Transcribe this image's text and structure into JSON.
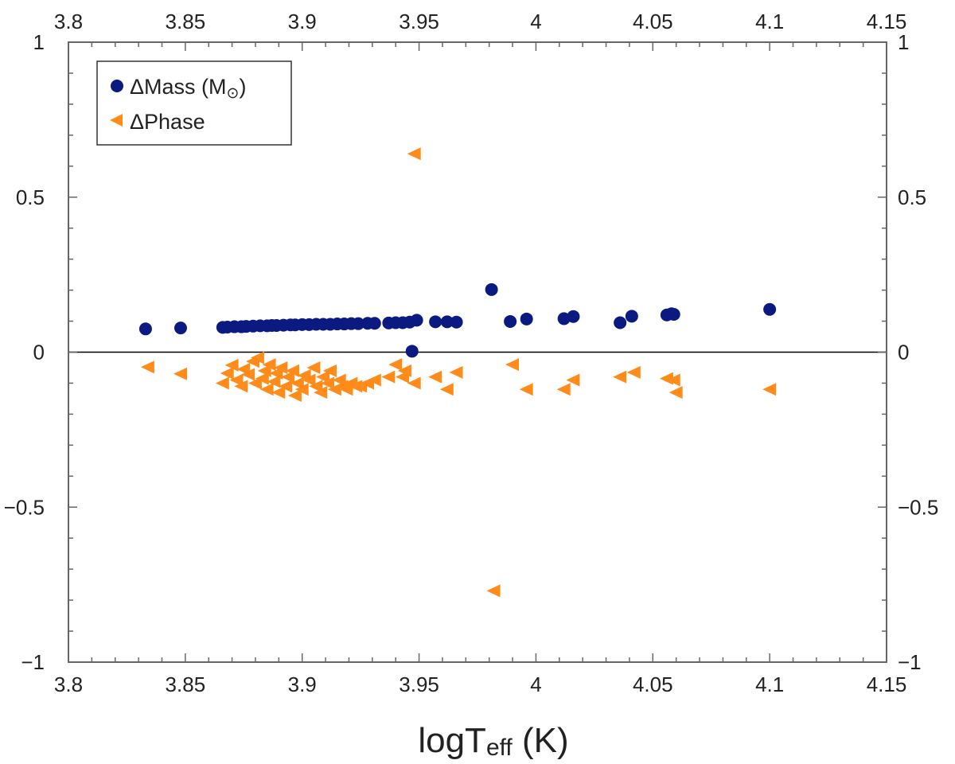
{
  "chart_data": {
    "type": "scatter",
    "title": "",
    "xlabel": {
      "main": "logT",
      "sub": "eff",
      "unit": " (K)"
    },
    "ylabel": "",
    "xlim": [
      3.8,
      4.15
    ],
    "ylim": [
      -1,
      1
    ],
    "x_ticks": [
      3.8,
      3.85,
      3.9,
      3.95,
      4,
      4.05,
      4.1,
      4.15
    ],
    "x_tick_labels": [
      "3.8",
      "3.85",
      "3.9",
      "3.95",
      "4",
      "4.05",
      "4.1",
      "4.15"
    ],
    "y_ticks": [
      -1,
      -0.5,
      0,
      0.5,
      1
    ],
    "y_tick_labels": [
      "−1",
      "−0.5",
      "0",
      "0.5",
      "1"
    ],
    "zero_line": true,
    "grid": false,
    "legend": {
      "position": "top-left",
      "entries": [
        {
          "main": "ΔMass (M",
          "sub": "⊙",
          "tail": ")"
        },
        {
          "main": "ΔPhase"
        }
      ]
    },
    "series": [
      {
        "name": "ΔMass (M⊙)",
        "marker": "circle",
        "color": "#0a1a80",
        "points": [
          [
            3.833,
            0.075
          ],
          [
            3.848,
            0.078
          ],
          [
            3.866,
            0.08
          ],
          [
            3.868,
            0.081
          ],
          [
            3.871,
            0.082
          ],
          [
            3.874,
            0.082
          ],
          [
            3.876,
            0.083
          ],
          [
            3.879,
            0.084
          ],
          [
            3.882,
            0.085
          ],
          [
            3.885,
            0.085
          ],
          [
            3.887,
            0.086
          ],
          [
            3.889,
            0.086
          ],
          [
            3.892,
            0.087
          ],
          [
            3.895,
            0.088
          ],
          [
            3.897,
            0.088
          ],
          [
            3.9,
            0.089
          ],
          [
            3.903,
            0.089
          ],
          [
            3.906,
            0.09
          ],
          [
            3.909,
            0.09
          ],
          [
            3.912,
            0.09
          ],
          [
            3.915,
            0.091
          ],
          [
            3.918,
            0.091
          ],
          [
            3.921,
            0.092
          ],
          [
            3.924,
            0.092
          ],
          [
            3.928,
            0.093
          ],
          [
            3.931,
            0.093
          ],
          [
            3.937,
            0.094
          ],
          [
            3.94,
            0.095
          ],
          [
            3.943,
            0.095
          ],
          [
            3.946,
            0.097
          ],
          [
            3.949,
            0.103
          ],
          [
            3.947,
            0.003
          ],
          [
            3.957,
            0.098
          ],
          [
            3.962,
            0.098
          ],
          [
            3.966,
            0.097
          ],
          [
            3.981,
            0.202
          ],
          [
            3.989,
            0.099
          ],
          [
            3.996,
            0.107
          ],
          [
            4.012,
            0.108
          ],
          [
            4.016,
            0.115
          ],
          [
            4.036,
            0.095
          ],
          [
            4.041,
            0.116
          ],
          [
            4.056,
            0.12
          ],
          [
            4.058,
            0.124
          ],
          [
            4.059,
            0.122
          ],
          [
            4.1,
            0.138
          ]
        ]
      },
      {
        "name": "ΔPhase",
        "marker": "triangle-left",
        "color": "#ff8c1a",
        "points": [
          [
            3.834,
            -0.048
          ],
          [
            3.848,
            -0.07
          ],
          [
            3.866,
            -0.1
          ],
          [
            3.868,
            -0.068
          ],
          [
            3.87,
            -0.042
          ],
          [
            3.872,
            -0.09
          ],
          [
            3.874,
            -0.11
          ],
          [
            3.875,
            -0.055
          ],
          [
            3.877,
            -0.072
          ],
          [
            3.879,
            -0.03
          ],
          [
            3.88,
            -0.1
          ],
          [
            3.881,
            -0.018
          ],
          [
            3.883,
            -0.085
          ],
          [
            3.884,
            -0.06
          ],
          [
            3.885,
            -0.12
          ],
          [
            3.886,
            -0.04
          ],
          [
            3.888,
            -0.095
          ],
          [
            3.889,
            -0.068
          ],
          [
            3.89,
            -0.13
          ],
          [
            3.891,
            -0.05
          ],
          [
            3.893,
            -0.11
          ],
          [
            3.894,
            -0.08
          ],
          [
            3.896,
            -0.06
          ],
          [
            3.897,
            -0.14
          ],
          [
            3.898,
            -0.1
          ],
          [
            3.9,
            -0.12
          ],
          [
            3.901,
            -0.075
          ],
          [
            3.903,
            -0.09
          ],
          [
            3.905,
            -0.05
          ],
          [
            3.906,
            -0.11
          ],
          [
            3.908,
            -0.13
          ],
          [
            3.909,
            -0.08
          ],
          [
            3.911,
            -0.1
          ],
          [
            3.912,
            -0.06
          ],
          [
            3.914,
            -0.12
          ],
          [
            3.916,
            -0.09
          ],
          [
            3.917,
            -0.11
          ],
          [
            3.919,
            -0.12
          ],
          [
            3.921,
            -0.1
          ],
          [
            3.923,
            -0.11
          ],
          [
            3.925,
            -0.11
          ],
          [
            3.928,
            -0.1
          ],
          [
            3.931,
            -0.09
          ],
          [
            3.937,
            -0.08
          ],
          [
            3.94,
            -0.04
          ],
          [
            3.943,
            -0.08
          ],
          [
            3.944,
            -0.06
          ],
          [
            3.948,
            -0.1
          ],
          [
            3.948,
            0.64
          ],
          [
            3.957,
            -0.08
          ],
          [
            3.962,
            -0.12
          ],
          [
            3.966,
            -0.065
          ],
          [
            3.982,
            -0.77
          ],
          [
            3.99,
            -0.04
          ],
          [
            3.996,
            -0.12
          ],
          [
            4.012,
            -0.12
          ],
          [
            4.016,
            -0.09
          ],
          [
            4.036,
            -0.08
          ],
          [
            4.042,
            -0.065
          ],
          [
            4.056,
            -0.085
          ],
          [
            4.059,
            -0.09
          ],
          [
            4.06,
            -0.13
          ],
          [
            4.1,
            -0.12
          ]
        ]
      }
    ]
  }
}
